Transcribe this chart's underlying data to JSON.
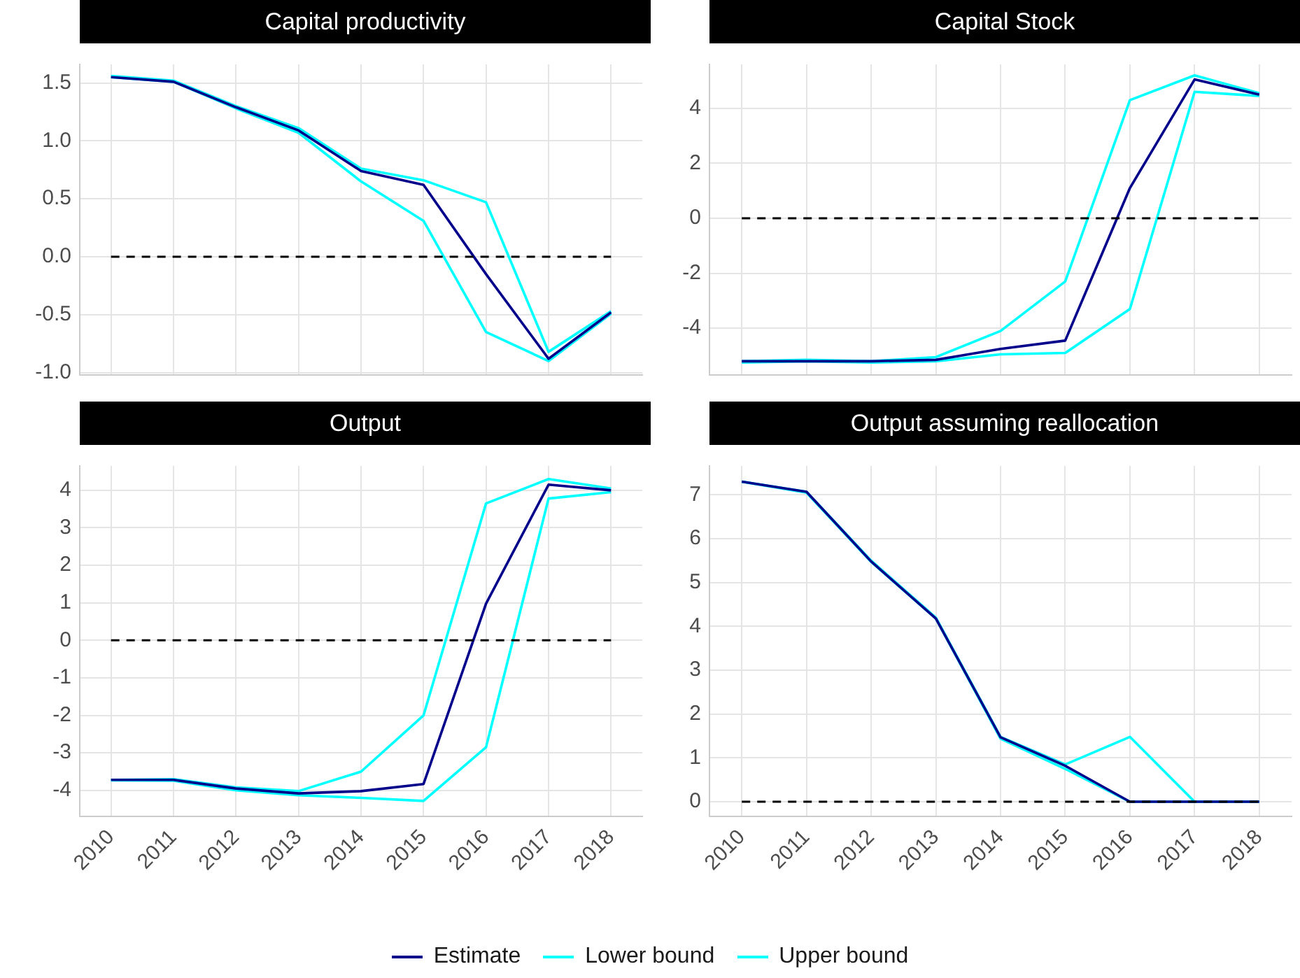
{
  "chart_data": [
    {
      "type": "line",
      "title": "Capital productivity",
      "categories": [
        "2010",
        "2011",
        "2012",
        "2013",
        "2014",
        "2015",
        "2016",
        "2017",
        "2018"
      ],
      "ylim": [
        -1.02,
        1.66
      ],
      "yticks": [
        {
          "value": -1,
          "label": "-1.0"
        },
        {
          "value": -0.5,
          "label": "-0.5"
        },
        {
          "value": 0,
          "label": "0.0"
        },
        {
          "value": 0.5,
          "label": "0.5"
        },
        {
          "value": 1,
          "label": "1.0"
        },
        {
          "value": 1.5,
          "label": "1.5"
        }
      ],
      "tick_labels": "y",
      "grid": true,
      "ref_lines": [
        {
          "axis": "y",
          "value": 0,
          "color": "#000000",
          "line_style": "dashed"
        }
      ],
      "series": [
        {
          "color": "#00008b",
          "values": [
            1.55,
            1.51,
            1.29,
            1.09,
            0.74,
            0.62,
            -0.15,
            -0.88,
            -0.48
          ]
        },
        {
          "color": "#00ffff",
          "values": [
            1.55,
            1.51,
            1.28,
            1.07,
            0.65,
            0.31,
            -0.65,
            -0.9,
            -0.49
          ]
        },
        {
          "color": "#00ffff",
          "values": [
            1.56,
            1.52,
            1.3,
            1.11,
            0.76,
            0.66,
            0.47,
            -0.82,
            -0.47
          ]
        }
      ]
    },
    {
      "type": "line",
      "title": "Capital Stock",
      "categories": [
        "2010",
        "2011",
        "2012",
        "2013",
        "2014",
        "2015",
        "2016",
        "2017",
        "2018"
      ],
      "ylim": [
        -5.7,
        5.6
      ],
      "yticks": [
        -4,
        -2,
        0,
        2,
        4
      ],
      "tick_labels": "y",
      "grid": true,
      "ref_lines": [
        {
          "axis": "y",
          "value": 0,
          "color": "#000000",
          "line_style": "dashed"
        }
      ],
      "series": [
        {
          "color": "#00008b",
          "values": [
            -5.2,
            -5.2,
            -5.2,
            -5.15,
            -4.75,
            -4.45,
            1.1,
            5.05,
            4.5
          ]
        },
        {
          "color": "#00ffff",
          "values": [
            -5.25,
            -5.2,
            -5.25,
            -5.2,
            -4.95,
            -4.9,
            -3.3,
            4.6,
            4.45
          ]
        },
        {
          "color": "#00ffff",
          "values": [
            -5.2,
            -5.15,
            -5.2,
            -5.05,
            -4.1,
            -2.3,
            4.3,
            5.2,
            4.55
          ]
        }
      ]
    },
    {
      "type": "line",
      "title": "Output",
      "categories": [
        "2010",
        "2011",
        "2012",
        "2013",
        "2014",
        "2015",
        "2016",
        "2017",
        "2018"
      ],
      "ylim": [
        -4.7,
        4.65
      ],
      "yticks": [
        -4,
        -3,
        -2,
        -1,
        0,
        1,
        2,
        3,
        4
      ],
      "grid": true,
      "ref_lines": [
        {
          "axis": "y",
          "value": 0,
          "color": "#000000",
          "line_style": "dashed"
        }
      ],
      "series": [
        {
          "color": "#00008b",
          "values": [
            -3.72,
            -3.72,
            -3.95,
            -4.08,
            -4.02,
            -3.83,
            0.98,
            4.15,
            4.0
          ]
        },
        {
          "color": "#00ffff",
          "values": [
            -3.73,
            -3.74,
            -4.0,
            -4.13,
            -4.2,
            -4.28,
            -2.85,
            3.78,
            3.95
          ]
        },
        {
          "color": "#00ffff",
          "values": [
            -3.72,
            -3.7,
            -3.92,
            -4.02,
            -3.5,
            -2.0,
            3.65,
            4.3,
            4.05
          ]
        }
      ]
    },
    {
      "type": "line",
      "title": "Output assuming reallocation",
      "categories": [
        "2010",
        "2011",
        "2012",
        "2013",
        "2014",
        "2015",
        "2016",
        "2017",
        "2018"
      ],
      "ylim": [
        -0.34,
        7.66
      ],
      "yticks": [
        0,
        1,
        2,
        3,
        4,
        5,
        6,
        7
      ],
      "grid": true,
      "legend": "bottom",
      "ref_lines": [
        {
          "axis": "y",
          "value": 0,
          "color": "#000000",
          "line_style": "dashed"
        }
      ],
      "series": [
        {
          "name": "Estimate",
          "color": "#00008b",
          "values": [
            7.3,
            7.07,
            5.48,
            4.18,
            1.47,
            0.82,
            0,
            0,
            0
          ]
        },
        {
          "name": "Lower bound",
          "color": "#00ffff",
          "values": [
            7.3,
            7.05,
            5.47,
            4.18,
            1.44,
            0.75,
            0,
            0,
            0
          ]
        },
        {
          "name": "Upper bound",
          "color": "#00ffff",
          "values": [
            7.3,
            7.07,
            5.5,
            4.2,
            1.48,
            0.85,
            1.48,
            0,
            0
          ]
        }
      ]
    }
  ]
}
